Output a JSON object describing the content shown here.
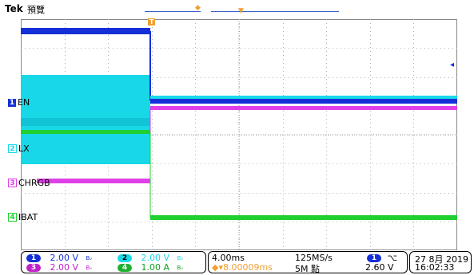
{
  "header": {
    "brand": "Tek",
    "mode": "預覽"
  },
  "colors": {
    "ch1": "#1530d8",
    "ch2": "#18d8e8",
    "ch3": "#e040e8",
    "ch4": "#20d030",
    "trigger": "#f0a030",
    "grid": "#b0b0b0"
  },
  "channels": [
    {
      "num": "1",
      "name": "EN"
    },
    {
      "num": "2",
      "name": "LX"
    },
    {
      "num": "3",
      "name": "CHRGB"
    },
    {
      "num": "4",
      "name": "IBAT"
    }
  ],
  "status": {
    "ch1_scale": "2.00 V",
    "ch2_scale": "2.00 V",
    "ch3_scale": "2.00 V",
    "ch4_scale": "1.00 A",
    "bw_mark": "Bᵥ",
    "timebase": "4.00ms",
    "trigger_pos": "◆▾8.00009ms",
    "sample_rate": "125MS/s",
    "record_length": "5M 點",
    "trig_channel": "1",
    "trig_slope": "⌥",
    "trig_level": "2.60 V",
    "date": "27 8月 2019",
    "time": "16:02:33"
  }
}
